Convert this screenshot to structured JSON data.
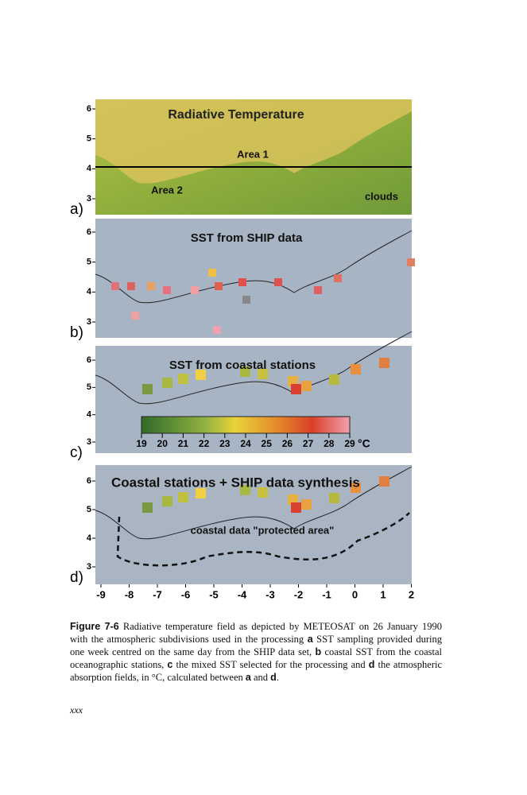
{
  "figure": {
    "panels": [
      {
        "label": "a)",
        "title": "Radiative Temperature",
        "notes": [
          "Area 1",
          "Area 2",
          "clouds"
        ],
        "yticks": [
          6,
          5,
          4,
          3
        ]
      },
      {
        "label": "b)",
        "title": "SST from SHIP data",
        "notes": [],
        "yticks": [
          6,
          5,
          4,
          3
        ]
      },
      {
        "label": "c)",
        "title": "SST from coastal stations",
        "notes": [],
        "yticks": [
          6,
          5,
          4,
          3
        ]
      },
      {
        "label": "d)",
        "title": "Coastal stations + SHIP data synthesis",
        "notes": [
          "coastal data \"protected area\""
        ],
        "yticks": [
          6,
          5,
          4,
          3
        ]
      }
    ],
    "xticks": [
      -9,
      -8,
      -7,
      -6,
      -5,
      -4,
      -3,
      -2,
      -1,
      0,
      1,
      2
    ],
    "colorbar": {
      "ticks": [
        19,
        20,
        21,
        22,
        23,
        24,
        25,
        26,
        27,
        28,
        29
      ],
      "unit": "°C"
    }
  },
  "caption": {
    "label": "Figure 7-6",
    "segments": [
      "Radiative temperature field as depicted by METEOSAT on 26 January 1990 with the atmospheric subdivisions used in the processing ",
      "a",
      " SST sampling provided during one week centred on the same day from the SHIP data set, ",
      "b",
      " coastal SST from the coastal oceanographic stations, ",
      "c",
      " the mixed SST selected for the processing and ",
      "d",
      " the atmospheric absorption fields, in °C, calculated between ",
      "a",
      " and ",
      "d",
      "."
    ]
  },
  "footer": "xxx"
}
